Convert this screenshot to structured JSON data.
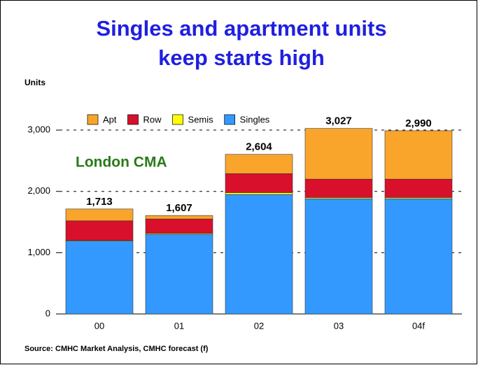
{
  "chart_data": {
    "type": "stacked-bar",
    "title": [
      "Singles and apartment units",
      "keep starts high"
    ],
    "y_label": "Units",
    "annotation": "London CMA",
    "source": "Source: CMHC Market Analysis, CMHC forecast (f)",
    "categories": [
      "00",
      "01",
      "02",
      "03",
      "04f"
    ],
    "series": [
      {
        "name": "Apt",
        "color": "#f9a52b",
        "values": [
          193,
          57,
          314,
          827,
          790
        ]
      },
      {
        "name": "Row",
        "color": "#d9102b",
        "values": [
          320,
          235,
          310,
          300,
          300
        ]
      },
      {
        "name": "Semis",
        "color": "#ffff00",
        "values": [
          10,
          15,
          30,
          20,
          20
        ]
      },
      {
        "name": "Singles",
        "color": "#3399ff",
        "values": [
          1190,
          1300,
          1950,
          1880,
          1880
        ]
      }
    ],
    "totals": [
      1713,
      1607,
      2604,
      3027,
      2990
    ],
    "total_labels": [
      "1,713",
      "1,607",
      "2,604",
      "3,027",
      "2,990"
    ],
    "ylim": [
      0,
      3400
    ],
    "yticks": [
      0,
      {
        "value": 1000,
        "label": "1,000"
      },
      {
        "value": 2000,
        "label": "2,000"
      },
      {
        "value": 3000,
        "label": "3,000"
      }
    ],
    "grid": true,
    "legend": "top"
  }
}
